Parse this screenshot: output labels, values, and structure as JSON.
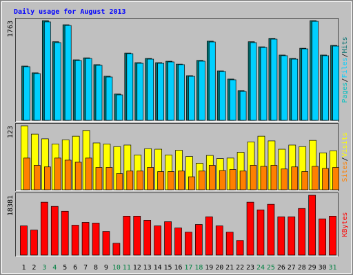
{
  "chart_data": [
    {
      "type": "bar",
      "title": "Daily usage for August 2013",
      "categories": [
        "1",
        "2",
        "3",
        "4",
        "5",
        "6",
        "7",
        "8",
        "9",
        "10",
        "11",
        "12",
        "13",
        "14",
        "15",
        "16",
        "17",
        "18",
        "19",
        "20",
        "21",
        "22",
        "23",
        "24",
        "25",
        "26",
        "27",
        "28",
        "29",
        "30",
        "31"
      ],
      "highlighted": [
        2,
        3,
        9,
        10,
        16,
        17,
        23,
        24,
        30
      ],
      "highlight_color": "#008040",
      "legend_extra": {
        "text": "Pages",
        "color": "#00c0c0"
      },
      "separator": "/",
      "ylim": [
        0,
        1763
      ],
      "series": [
        {
          "name": "Hits",
          "color": "#007070",
          "values": [
            960,
            840,
            1763,
            1390,
            1690,
            1070,
            1105,
            985,
            780,
            465,
            1190,
            1020,
            1095,
            1020,
            1045,
            995,
            790,
            1060,
            1400,
            875,
            730,
            525,
            1390,
            1300,
            1450,
            1155,
            1095,
            1275,
            1763,
            1155,
            1325
          ]
        },
        {
          "name": "Files",
          "color": "#00d0ff",
          "values": [
            948,
            827,
            1740,
            1374,
            1678,
            1058,
            1094,
            973,
            766,
            450,
            1179,
            1009,
            1082,
            1009,
            1033,
            985,
            778,
            1046,
            1386,
            863,
            717,
            511,
            1374,
            1289,
            1435,
            1143,
            1082,
            1264,
            1750,
            1143,
            1313
          ]
        }
      ]
    },
    {
      "type": "bar",
      "ylim": [
        0,
        123
      ],
      "separator": "/",
      "series": [
        {
          "name": "Visits",
          "color": "#ffff00",
          "values": [
            123,
            107,
            98,
            88,
            96,
            103,
            114,
            90,
            88,
            83,
            86,
            67,
            79,
            78,
            67,
            76,
            64,
            51,
            66,
            60,
            61,
            72,
            92,
            103,
            94,
            78,
            86,
            83,
            95,
            71,
            75
          ]
        },
        {
          "name": "Sites",
          "color": "#ff8000",
          "values": [
            61,
            47,
            44,
            61,
            57,
            53,
            61,
            43,
            43,
            31,
            36,
            36,
            43,
            35,
            35,
            36,
            25,
            36,
            47,
            37,
            39,
            36,
            47,
            45,
            47,
            40,
            44,
            35,
            45,
            41,
            43
          ]
        }
      ]
    },
    {
      "type": "bar",
      "ylim": [
        0,
        18381
      ],
      "series": [
        {
          "name": "KBytes",
          "color": "#ff0000",
          "values": [
            8977,
            7694,
            16244,
            14961,
            13465,
            9190,
            10045,
            9832,
            7267,
            3633,
            11969,
            11969,
            10687,
            8977,
            10259,
            8336,
            7053,
            9404,
            11755,
            8977,
            7053,
            4488,
            16244,
            13893,
            15603,
            11755,
            11755,
            14320,
            18381,
            11114,
            11969
          ]
        }
      ]
    }
  ]
}
